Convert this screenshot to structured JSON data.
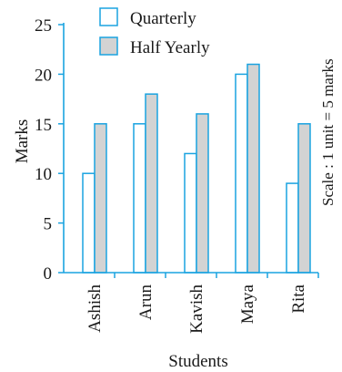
{
  "chart_data": {
    "type": "bar",
    "categories": [
      "Ashish",
      "Arun",
      "Kavish",
      "Maya",
      "Rita"
    ],
    "series": [
      {
        "name": "Quarterly",
        "values": [
          10,
          15,
          12,
          20,
          9
        ]
      },
      {
        "name": "Half Yearly",
        "values": [
          15,
          18,
          16,
          21,
          15
        ]
      }
    ],
    "xlabel": "Students",
    "ylabel": "Marks",
    "ylim": [
      0,
      25
    ],
    "yticks": [
      0,
      5,
      10,
      15,
      20,
      25
    ],
    "grid": false,
    "legend_position": "top",
    "annotation": "Scale :  1 unit = 5 marks",
    "colors": {
      "quarterly_fill": "#ffffff",
      "half_yearly_fill": "#d3d3d3",
      "bar_stroke": "#1aa3e0",
      "axis": "#1aa3e0",
      "text": "#1a1a1a"
    }
  }
}
